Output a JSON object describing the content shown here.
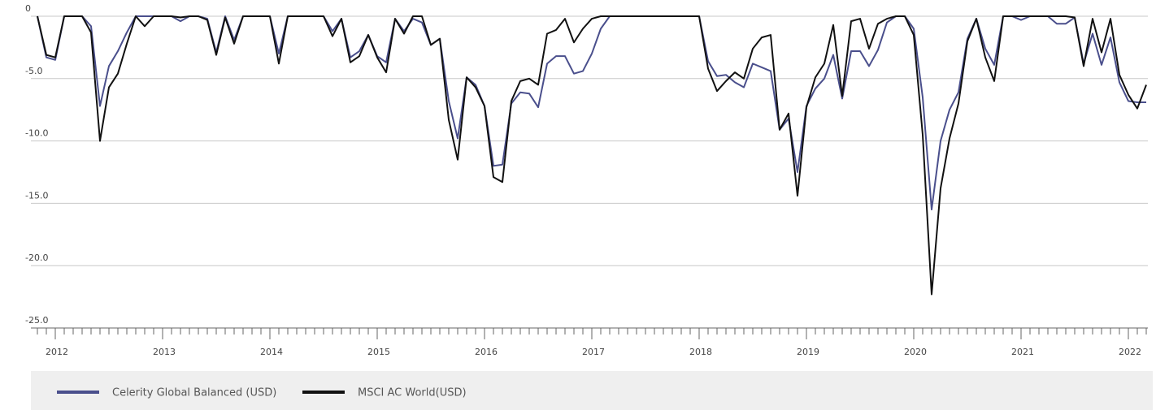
{
  "chart_data": {
    "type": "line",
    "categories": [
      null,
      null,
      "2012",
      null,
      null,
      null,
      null,
      null,
      null,
      null,
      null,
      null,
      null,
      null,
      "2013",
      null,
      null,
      null,
      null,
      null,
      null,
      null,
      null,
      null,
      null,
      null,
      "2014",
      null,
      null,
      null,
      null,
      null,
      null,
      null,
      null,
      null,
      null,
      null,
      "2015",
      null,
      null,
      null,
      null,
      null,
      null,
      null,
      null,
      null,
      null,
      null,
      "2016",
      null,
      null,
      null,
      null,
      null,
      null,
      null,
      null,
      null,
      null,
      null,
      "2017",
      null,
      null,
      null,
      null,
      null,
      null,
      null,
      null,
      null,
      null,
      null,
      "2018",
      null,
      null,
      null,
      null,
      null,
      null,
      null,
      null,
      null,
      null,
      null,
      "2019",
      null,
      null,
      null,
      null,
      null,
      null,
      null,
      null,
      null,
      null,
      null,
      "2020",
      null,
      null,
      null,
      null,
      null,
      null,
      null,
      null,
      null,
      null,
      null,
      "2021",
      null,
      null,
      null,
      null,
      null,
      null,
      null,
      null,
      null,
      null,
      null,
      "2022",
      null,
      null
    ],
    "series": [
      {
        "name": "Celerity Global Balanced (USD)",
        "color": "#4a4f8c",
        "values": [
          0,
          -3.3,
          -3.5,
          0,
          0,
          0,
          -0.8,
          -7.2,
          -4.0,
          -2.8,
          -1.3,
          0,
          0,
          0,
          0,
          0,
          -0.4,
          0,
          0,
          -0.2,
          -2.9,
          0,
          -1.9,
          0,
          0,
          0,
          0,
          -3.0,
          0,
          0,
          0,
          0,
          0,
          -1.2,
          -0.2,
          -3.3,
          -2.8,
          -1.5,
          -3.2,
          -3.7,
          -0.2,
          -1.2,
          -0.2,
          -0.5,
          -2.3,
          -1.8,
          -6.8,
          -9.8,
          -4.9,
          -5.5,
          -7.2,
          -12.0,
          -11.9,
          -7.0,
          -6.1,
          -6.2,
          -7.3,
          -3.8,
          -3.2,
          -3.2,
          -4.6,
          -4.4,
          -3.0,
          -1.0,
          0,
          0,
          0,
          0,
          0,
          0,
          0,
          0,
          0,
          0,
          0,
          -3.6,
          -4.8,
          -4.7,
          -5.3,
          -5.7,
          -3.8,
          -4.1,
          -4.4,
          -9.1,
          -8.2,
          -12.5,
          -7.2,
          -5.8,
          -5.0,
          -3.1,
          -6.6,
          -2.8,
          -2.8,
          -4.0,
          -2.7,
          -0.5,
          0,
          0,
          -1.0,
          -6.5,
          -15.5,
          -10.0,
          -7.5,
          -6.1,
          -1.8,
          -0.2,
          -2.6,
          -3.9,
          0,
          0,
          -0.3,
          0,
          0,
          0,
          -0.6,
          -0.6,
          -0.1,
          -3.8,
          -1.4,
          -3.9,
          -1.7,
          -5.3,
          -6.8,
          -6.9,
          -6.9
        ]
      },
      {
        "name": "MSCI AC World(USD)",
        "color": "#111111",
        "values": [
          0,
          -3.1,
          -3.3,
          0,
          0,
          0,
          -1.3,
          -10.0,
          -5.7,
          -4.6,
          -2.2,
          0,
          -0.8,
          0,
          0,
          0,
          -0.1,
          0,
          0,
          -0.3,
          -3.1,
          -0.1,
          -2.2,
          0,
          0,
          0,
          0,
          -3.8,
          0,
          0,
          0,
          0,
          0,
          -1.6,
          -0.2,
          -3.7,
          -3.2,
          -1.5,
          -3.3,
          -4.5,
          -0.2,
          -1.4,
          0,
          0,
          -2.3,
          -1.8,
          -8.3,
          -11.5,
          -4.9,
          -5.7,
          -7.2,
          -12.9,
          -13.3,
          -6.8,
          -5.2,
          -5.0,
          -5.5,
          -1.4,
          -1.1,
          -0.2,
          -2.1,
          -1.0,
          -0.2,
          0,
          0,
          0,
          0,
          0,
          0,
          0,
          0,
          0,
          0,
          0,
          0,
          -4.2,
          -6.0,
          -5.2,
          -4.5,
          -5.0,
          -2.6,
          -1.7,
          -1.5,
          -9.1,
          -7.8,
          -14.4,
          -7.3,
          -4.9,
          -3.8,
          -0.7,
          -6.4,
          -0.4,
          -0.2,
          -2.6,
          -0.6,
          -0.2,
          0,
          0,
          -1.5,
          -9.5,
          -22.3,
          -13.8,
          -9.8,
          -7.0,
          -2.0,
          -0.2,
          -3.3,
          -5.2,
          0,
          0,
          0,
          0,
          0,
          0,
          0,
          0,
          -0.1,
          -4.0,
          -0.2,
          -2.9,
          -0.2,
          -4.7,
          -6.3,
          -7.4,
          -5.5
        ]
      }
    ],
    "ylim": [
      -25,
      0
    ],
    "yticks": [
      {
        "value": -25,
        "label": "-25.0"
      },
      {
        "value": -20,
        "label": "-20.0"
      },
      {
        "value": -15,
        "label": "-15.0"
      },
      {
        "value": -10,
        "label": "-10.0"
      },
      {
        "value": -5,
        "label": "-5.0"
      },
      0
    ],
    "grid": true
  }
}
